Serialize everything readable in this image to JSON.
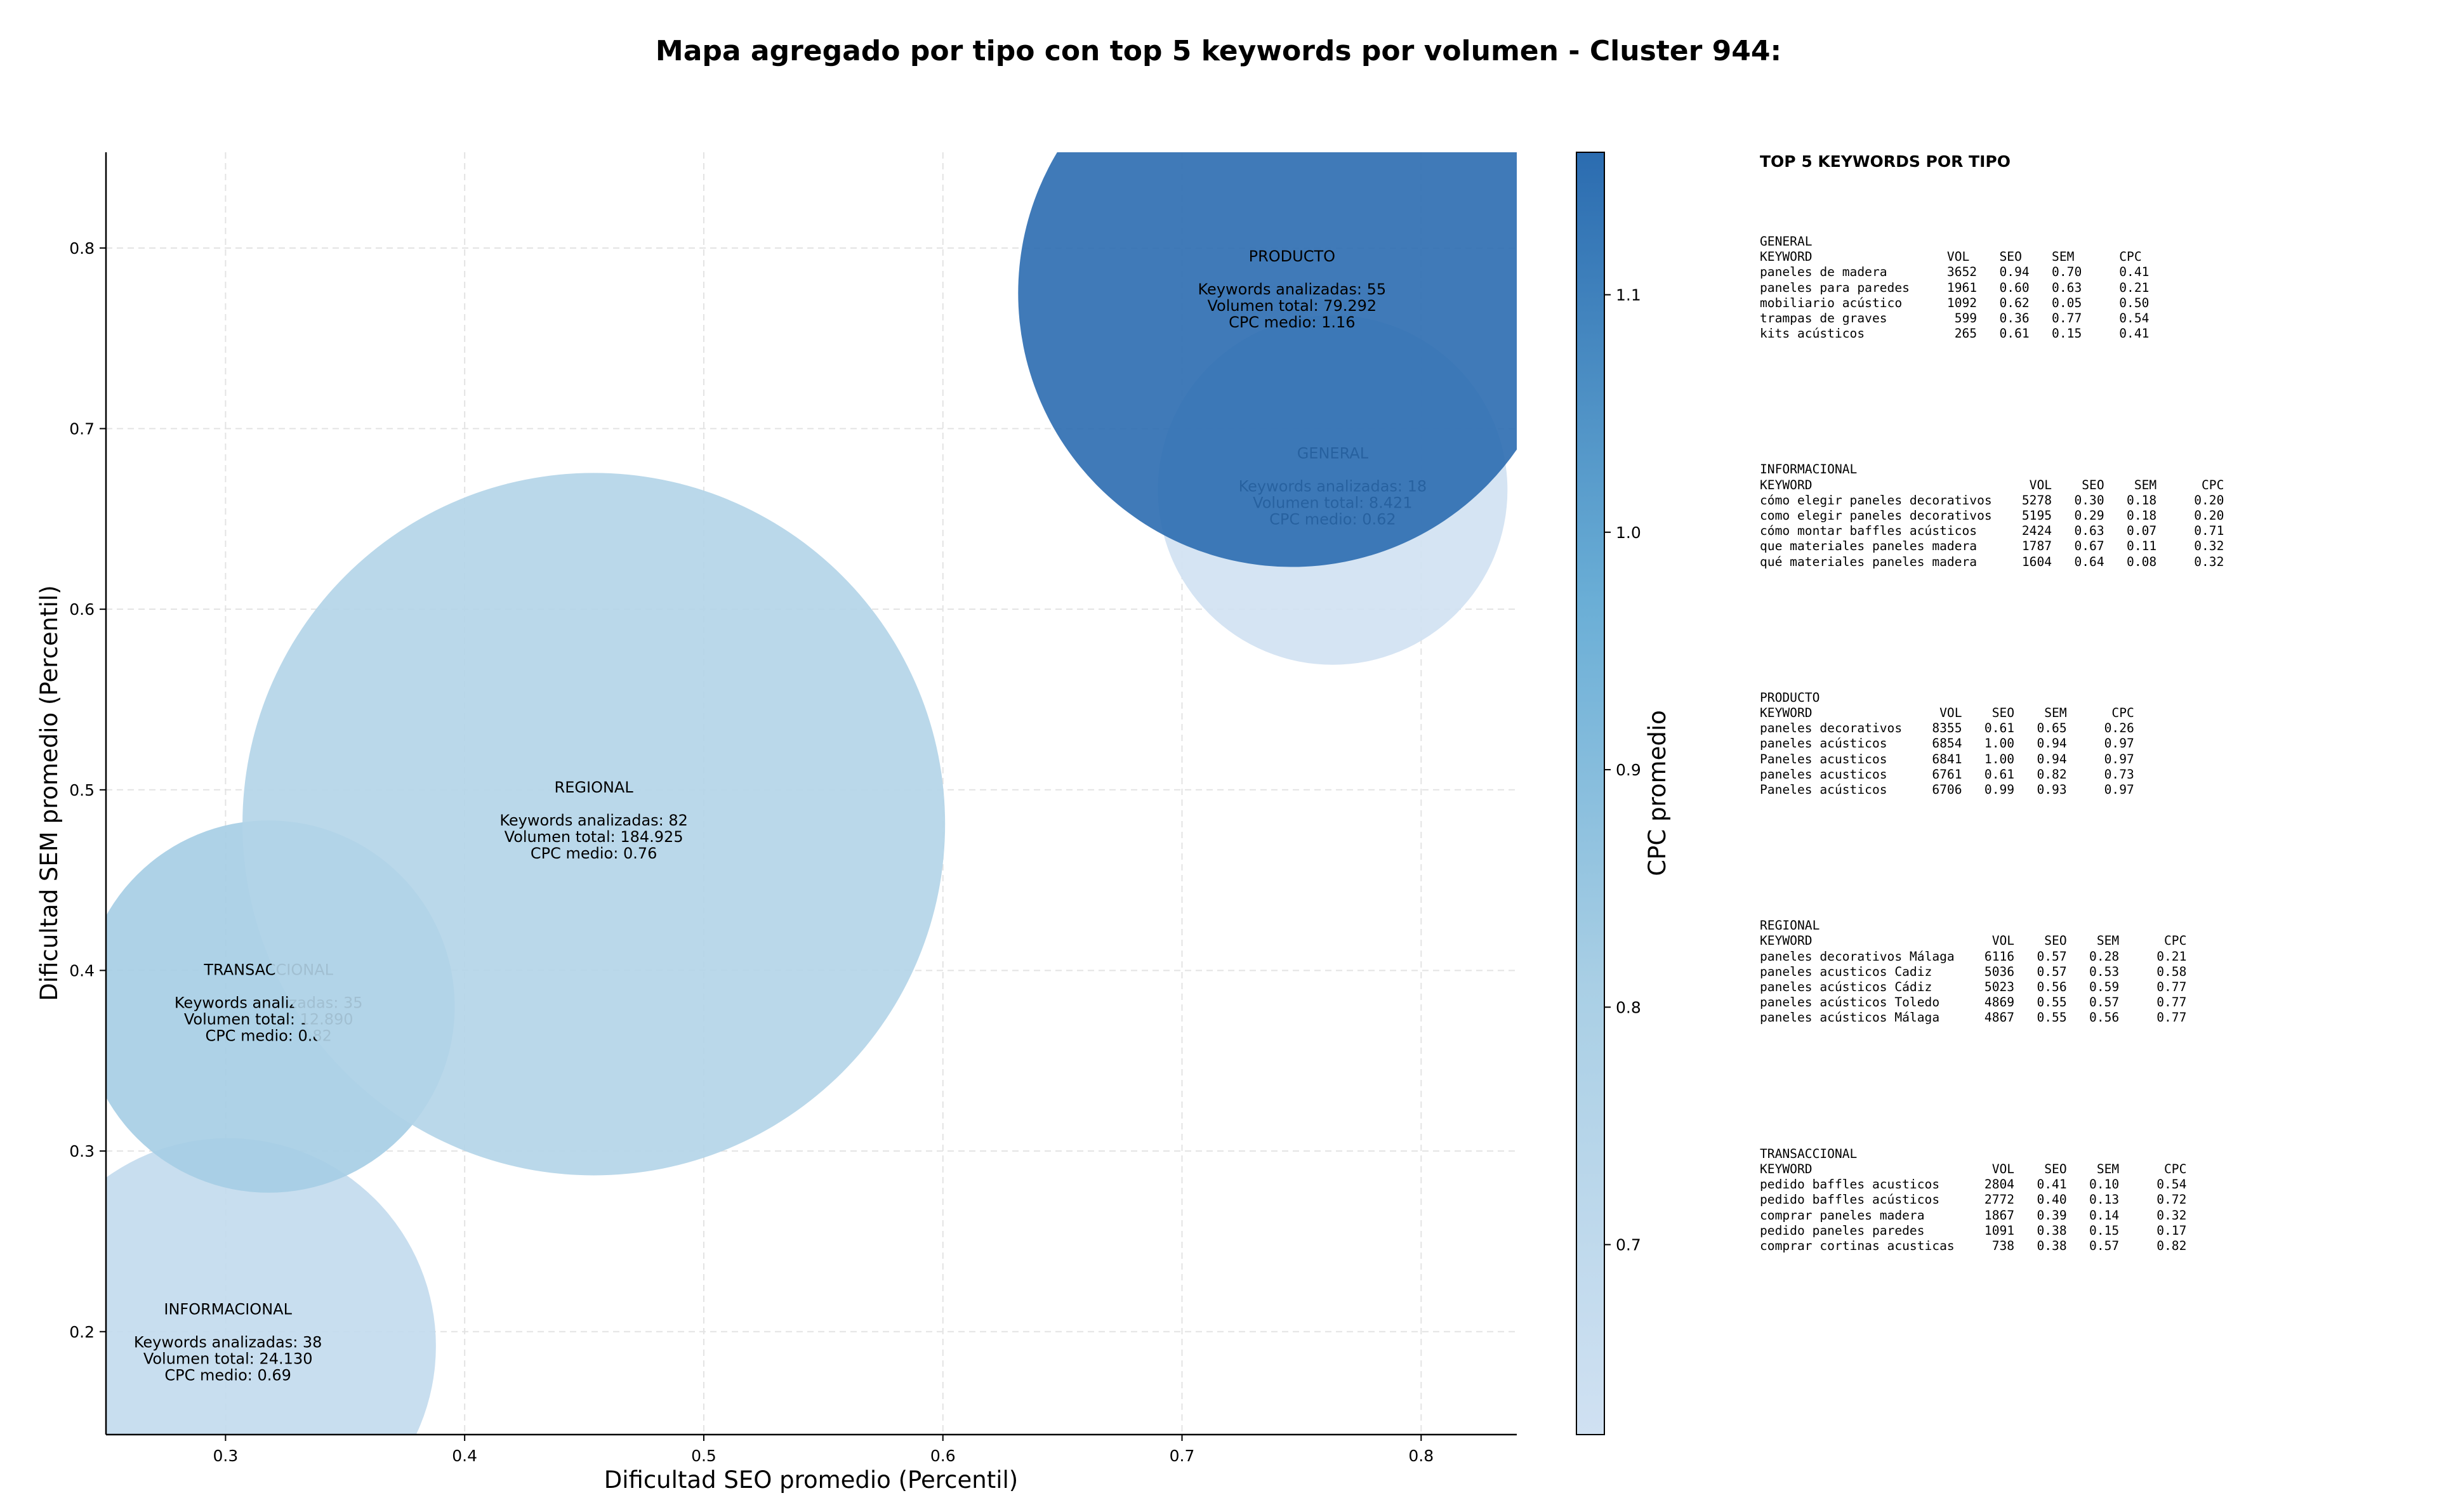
{
  "chart_data": {
    "type": "scatter",
    "title": "Mapa agregado por tipo con top 5 keywords por volumen - Cluster 944:",
    "xlabel": "Dificultad SEO promedio (Percentil)",
    "ylabel": "Dificultad SEM promedio (Percentil)",
    "xlim": [
      0.25,
      0.84
    ],
    "ylim": [
      0.143,
      0.853
    ],
    "xticks": [
      0.3,
      0.4,
      0.5,
      0.6,
      0.7,
      0.8
    ],
    "yticks": [
      0.2,
      0.3,
      0.4,
      0.5,
      0.6,
      0.7,
      0.8
    ],
    "xtick_labels": [
      "0.3",
      "0.4",
      "0.5",
      "0.6",
      "0.7",
      "0.8"
    ],
    "ytick_labels": [
      "0.2",
      "0.3",
      "0.4",
      "0.5",
      "0.6",
      "0.7",
      "0.8"
    ],
    "grid": true,
    "colorbar": {
      "label": "CPC promedio",
      "min": 0.62,
      "max": 1.16,
      "ticks": [
        0.7,
        0.8,
        0.9,
        1.0,
        1.1
      ],
      "tick_labels": [
        "0.7",
        "0.8",
        "0.9",
        "1.0",
        "1.1"
      ],
      "color_low": "#d0e1f2",
      "color_high": "#2b6cb0"
    },
    "bubbles": [
      {
        "type_label": "INFORMACIONAL",
        "x": 0.301,
        "y": 0.192,
        "keywords_line": "Keywords analizadas: 38",
        "volume_line": "Volumen total: 24.130",
        "cpc_line": "CPC medio: 0.69",
        "cpc": 0.69,
        "volume": 24130
      },
      {
        "type_label": "TRANSACCIONAL",
        "x": 0.318,
        "y": 0.38,
        "keywords_line": "Keywords analizadas: 35",
        "volume_line": "Volumen total: 12.890",
        "cpc_line": "CPC medio: 0.82",
        "cpc": 0.82,
        "volume": 12890
      },
      {
        "type_label": "REGIONAL",
        "x": 0.454,
        "y": 0.481,
        "keywords_line": "Keywords analizadas: 82",
        "volume_line": "Volumen total: 184.925",
        "cpc_line": "CPC medio: 0.76",
        "cpc": 0.76,
        "volume": 184925
      },
      {
        "type_label": "GENERAL",
        "x": 0.763,
        "y": 0.666,
        "keywords_line": "Keywords analizadas: 18",
        "volume_line": "Volumen total: 8.421",
        "cpc_line": "CPC medio: 0.62",
        "cpc": 0.62,
        "volume": 8421
      },
      {
        "type_label": "PRODUCTO",
        "x": 0.746,
        "y": 0.775,
        "keywords_line": "Keywords analizadas: 55",
        "volume_line": "Volumen total: 79.292",
        "cpc_line": "CPC medio: 1.16",
        "cpc": 1.16,
        "volume": 79292
      }
    ]
  },
  "side_panel": {
    "title": "TOP 5 KEYWORDS POR TIPO",
    "blocks": [
      {
        "type": "GENERAL",
        "header": "KEYWORD                  VOL    SEO    SEM      CPC",
        "rows": [
          "paneles de madera        3652   0.94   0.70     0.41",
          "paneles para paredes     1961   0.60   0.63     0.21",
          "mobiliario acústico      1092   0.62   0.05     0.50",
          "trampas de graves         599   0.36   0.77     0.54",
          "kits acústicos            265   0.61   0.15     0.41"
        ]
      },
      {
        "type": "INFORMACIONAL",
        "header": "KEYWORD                             VOL    SEO    SEM      CPC",
        "rows": [
          "cómo elegir paneles decorativos    5278   0.30   0.18     0.20",
          "como elegir paneles decorativos    5195   0.29   0.18     0.20",
          "cómo montar baffles acústicos      2424   0.63   0.07     0.71",
          "que materiales paneles madera      1787   0.67   0.11     0.32",
          "qué materiales paneles madera      1604   0.64   0.08     0.32"
        ]
      },
      {
        "type": "PRODUCTO",
        "header": "KEYWORD                 VOL    SEO    SEM      CPC",
        "rows": [
          "paneles decorativos    8355   0.61   0.65     0.26",
          "paneles acústicos      6854   1.00   0.94     0.97",
          "Paneles acusticos      6841   1.00   0.94     0.97",
          "paneles acusticos      6761   0.61   0.82     0.73",
          "Paneles acústicos      6706   0.99   0.93     0.97"
        ]
      },
      {
        "type": "REGIONAL",
        "header": "KEYWORD                        VOL    SEO    SEM      CPC",
        "rows": [
          "paneles decorativos Málaga    6116   0.57   0.28     0.21",
          "paneles acusticos Cadiz       5036   0.57   0.53     0.58",
          "paneles acústicos Cádiz       5023   0.56   0.59     0.77",
          "paneles acústicos Toledo      4869   0.55   0.57     0.77",
          "paneles acústicos Málaga      4867   0.55   0.56     0.77"
        ]
      },
      {
        "type": "TRANSACCIONAL",
        "header": "KEYWORD                        VOL    SEO    SEM      CPC",
        "rows": [
          "pedido baffles acusticos      2804   0.41   0.10     0.54",
          "pedido baffles acústicos      2772   0.40   0.13     0.72",
          "comprar paneles madera        1867   0.39   0.14     0.32",
          "pedido paneles paredes        1091   0.38   0.15     0.17",
          "comprar cortinas acusticas     738   0.38   0.57     0.82"
        ]
      }
    ]
  }
}
